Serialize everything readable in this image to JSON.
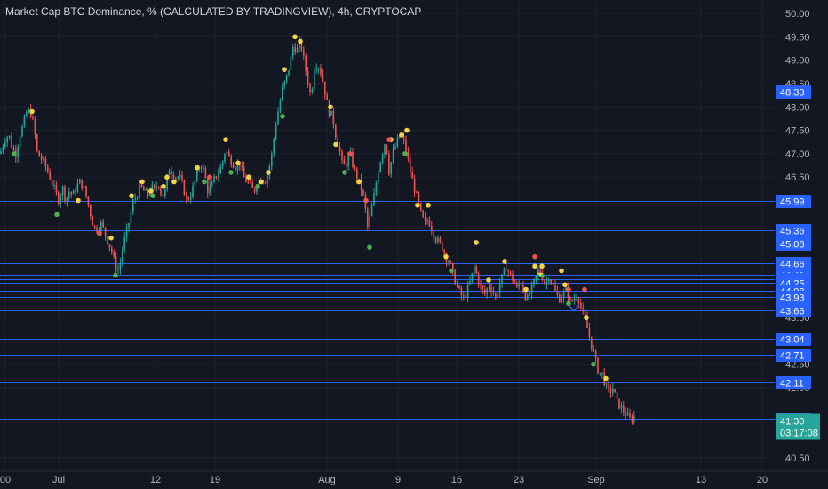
{
  "header": {
    "title": "Market Cap BTC Dominance, % (CALCULATED BY TRADINGVIEW), 4h, CRYPTOCAP"
  },
  "colors": {
    "background": "#131722",
    "grid": "#1e222d",
    "level_line": "#2962ff",
    "up_candle": "#26a69a",
    "down_candle": "#ef5350",
    "dot_yellow": "#f5d442",
    "dot_green": "#4caf50",
    "dot_red": "#ef5350",
    "current_price_bg": "#26a69a"
  },
  "chart_data": {
    "type": "candlestick",
    "y_axis_ticks": [
      "50.00",
      "49.50",
      "49.00",
      "48.50",
      "48.00",
      "47.50",
      "47.00",
      "46.50",
      "43.50",
      "42.50",
      "42.00",
      "40.50"
    ],
    "y_tick_values": [
      50.0,
      49.5,
      49.0,
      48.5,
      48.0,
      47.5,
      47.0,
      46.5,
      43.5,
      42.5,
      42.0,
      40.5
    ],
    "ylim": [
      40.26,
      50.15
    ],
    "x_axis_labels": [
      "00",
      "Jul",
      "12",
      "19",
      "Aug",
      "9",
      "16",
      "23",
      "Sep",
      "13",
      "20"
    ],
    "level_lines": [
      "48.33",
      "45.99",
      "45.36",
      "45.08",
      "44.66",
      "44.41",
      "44.31",
      "44.25",
      "44.08",
      "43.93",
      "43.66",
      "43.04",
      "42.71",
      "42.11",
      "41.33"
    ],
    "level_values": [
      48.33,
      45.99,
      45.36,
      45.08,
      44.66,
      44.41,
      44.31,
      44.25,
      44.08,
      43.93,
      43.66,
      43.04,
      42.71,
      42.11,
      41.33
    ],
    "current_price": "41.30",
    "current_value": 41.3,
    "countdown": "03:17:08",
    "close_path": [
      [
        0,
        47.0
      ],
      [
        5,
        47.3
      ],
      [
        10,
        47.4
      ],
      [
        14,
        47.1
      ],
      [
        18,
        47.0
      ],
      [
        22,
        47.4
      ],
      [
        26,
        47.6
      ],
      [
        30,
        47.9
      ],
      [
        34,
        47.9
      ],
      [
        38,
        47.6
      ],
      [
        42,
        47.0
      ],
      [
        46,
        46.9
      ],
      [
        50,
        46.8
      ],
      [
        54,
        46.6
      ],
      [
        58,
        46.4
      ],
      [
        62,
        46.2
      ],
      [
        66,
        46.0
      ],
      [
        70,
        46.3
      ],
      [
        74,
        46.0
      ],
      [
        78,
        46.2
      ],
      [
        82,
        46.1
      ],
      [
        86,
        46.3
      ],
      [
        90,
        46.4
      ],
      [
        94,
        46.3
      ],
      [
        98,
        46.0
      ],
      [
        102,
        45.7
      ],
      [
        106,
        45.4
      ],
      [
        110,
        45.4
      ],
      [
        114,
        45.5
      ],
      [
        118,
        45.3
      ],
      [
        122,
        45.1
      ],
      [
        126,
        44.9
      ],
      [
        130,
        44.6
      ],
      [
        134,
        44.5
      ],
      [
        138,
        45.0
      ],
      [
        142,
        45.3
      ],
      [
        146,
        45.6
      ],
      [
        150,
        46.0
      ],
      [
        154,
        46.1
      ],
      [
        158,
        46.3
      ],
      [
        162,
        46.2
      ],
      [
        166,
        46.1
      ],
      [
        170,
        46.3
      ],
      [
        174,
        46.2
      ],
      [
        178,
        46.4
      ],
      [
        182,
        46.1
      ],
      [
        186,
        46.2
      ],
      [
        190,
        46.7
      ],
      [
        194,
        46.6
      ],
      [
        198,
        46.5
      ],
      [
        202,
        46.5
      ],
      [
        206,
        46.3
      ],
      [
        210,
        46.0
      ],
      [
        214,
        46.1
      ],
      [
        218,
        46.3
      ],
      [
        222,
        46.6
      ],
      [
        226,
        46.8
      ],
      [
        230,
        46.6
      ],
      [
        234,
        46.2
      ],
      [
        238,
        46.3
      ],
      [
        242,
        46.5
      ],
      [
        246,
        46.6
      ],
      [
        250,
        46.8
      ],
      [
        254,
        47.1
      ],
      [
        258,
        46.9
      ],
      [
        262,
        46.8
      ],
      [
        266,
        46.7
      ],
      [
        270,
        46.8
      ],
      [
        274,
        46.5
      ],
      [
        278,
        46.4
      ],
      [
        282,
        46.3
      ],
      [
        286,
        46.2
      ],
      [
        290,
        46.4
      ],
      [
        294,
        46.5
      ],
      [
        298,
        46.4
      ],
      [
        302,
        46.6
      ],
      [
        306,
        47.0
      ],
      [
        310,
        47.6
      ],
      [
        314,
        48.0
      ],
      [
        318,
        48.4
      ],
      [
        322,
        48.6
      ],
      [
        326,
        48.9
      ],
      [
        330,
        49.3
      ],
      [
        334,
        49.2
      ],
      [
        338,
        49.4
      ],
      [
        342,
        49.0
      ],
      [
        346,
        48.6
      ],
      [
        350,
        48.2
      ],
      [
        354,
        48.9
      ],
      [
        358,
        48.9
      ],
      [
        362,
        48.7
      ],
      [
        366,
        48.3
      ],
      [
        370,
        47.9
      ],
      [
        374,
        47.8
      ],
      [
        378,
        47.4
      ],
      [
        382,
        47.1
      ],
      [
        386,
        46.7
      ],
      [
        390,
        46.8
      ],
      [
        394,
        47.0
      ],
      [
        398,
        46.7
      ],
      [
        402,
        46.5
      ],
      [
        406,
        46.3
      ],
      [
        410,
        46.0
      ],
      [
        414,
        45.4
      ],
      [
        418,
        45.8
      ],
      [
        422,
        46.2
      ],
      [
        426,
        46.7
      ],
      [
        430,
        47.0
      ],
      [
        434,
        47.3
      ],
      [
        438,
        46.6
      ],
      [
        442,
        47.0
      ],
      [
        446,
        47.2
      ],
      [
        450,
        47.4
      ],
      [
        454,
        47.3
      ],
      [
        458,
        47.0
      ],
      [
        462,
        46.6
      ],
      [
        466,
        46.3
      ],
      [
        470,
        46.0
      ],
      [
        474,
        45.7
      ],
      [
        478,
        45.5
      ],
      [
        482,
        45.6
      ],
      [
        486,
        45.4
      ],
      [
        490,
        45.2
      ],
      [
        494,
        45.1
      ],
      [
        498,
        45.0
      ],
      [
        502,
        44.8
      ],
      [
        506,
        44.7
      ],
      [
        510,
        44.4
      ],
      [
        514,
        44.2
      ],
      [
        518,
        44.0
      ],
      [
        522,
        43.9
      ],
      [
        526,
        44.1
      ],
      [
        530,
        44.3
      ],
      [
        534,
        44.6
      ],
      [
        538,
        44.3
      ],
      [
        542,
        44.1
      ],
      [
        546,
        44.0
      ],
      [
        550,
        44.2
      ],
      [
        554,
        44.1
      ],
      [
        558,
        43.9
      ],
      [
        562,
        44.2
      ],
      [
        566,
        44.4
      ],
      [
        570,
        44.6
      ],
      [
        574,
        44.4
      ],
      [
        578,
        44.3
      ],
      [
        582,
        44.1
      ],
      [
        586,
        44.3
      ],
      [
        590,
        44.0
      ],
      [
        594,
        43.9
      ],
      [
        598,
        44.1
      ],
      [
        602,
        44.3
      ],
      [
        606,
        44.5
      ],
      [
        610,
        44.4
      ],
      [
        614,
        44.2
      ],
      [
        618,
        44.4
      ],
      [
        622,
        44.2
      ],
      [
        626,
        44.0
      ],
      [
        630,
        43.9
      ],
      [
        634,
        44.0
      ],
      [
        638,
        44.1
      ],
      [
        642,
        43.8
      ],
      [
        646,
        43.9
      ],
      [
        650,
        44.0
      ],
      [
        654,
        43.7
      ],
      [
        658,
        43.5
      ],
      [
        662,
        43.2
      ],
      [
        666,
        42.9
      ],
      [
        670,
        42.6
      ],
      [
        674,
        42.3
      ],
      [
        678,
        42.3
      ],
      [
        682,
        42.0
      ],
      [
        686,
        41.9
      ],
      [
        690,
        42.0
      ],
      [
        694,
        41.7
      ],
      [
        698,
        41.6
      ],
      [
        702,
        41.5
      ],
      [
        706,
        41.4
      ],
      [
        710,
        41.3
      ],
      [
        714,
        41.4
      ],
      [
        716,
        41.3
      ]
    ],
    "dots_yellow": [
      [
        36,
        47.9
      ],
      [
        88,
        46.0
      ],
      [
        125,
        45.2
      ],
      [
        148,
        46.1
      ],
      [
        160,
        46.4
      ],
      [
        170,
        46.2
      ],
      [
        184,
        46.3
      ],
      [
        188,
        46.5
      ],
      [
        196,
        46.4
      ],
      [
        222,
        46.7
      ],
      [
        254,
        47.3
      ],
      [
        268,
        46.8
      ],
      [
        280,
        46.5
      ],
      [
        294,
        46.4
      ],
      [
        302,
        46.6
      ],
      [
        320,
        48.8
      ],
      [
        332,
        49.5
      ],
      [
        338,
        49.4
      ],
      [
        372,
        48.0
      ],
      [
        378,
        47.2
      ],
      [
        404,
        46.4
      ],
      [
        440,
        47.3
      ],
      [
        452,
        47.4
      ],
      [
        458,
        47.5
      ],
      [
        470,
        45.9
      ],
      [
        482,
        45.9
      ],
      [
        502,
        44.8
      ],
      [
        536,
        45.1
      ],
      [
        550,
        44.3
      ],
      [
        568,
        44.7
      ],
      [
        592,
        44.1
      ],
      [
        602,
        44.6
      ],
      [
        610,
        44.6
      ],
      [
        632,
        44.5
      ],
      [
        636,
        44.2
      ],
      [
        660,
        43.5
      ],
      [
        682,
        42.2
      ]
    ],
    "dots_green": [
      [
        16,
        47.0
      ],
      [
        64,
        45.7
      ],
      [
        130,
        44.4
      ],
      [
        172,
        46.1
      ],
      [
        230,
        46.4
      ],
      [
        260,
        46.6
      ],
      [
        290,
        46.3
      ],
      [
        318,
        47.8
      ],
      [
        388,
        46.6
      ],
      [
        416,
        45.0
      ],
      [
        456,
        47.0
      ],
      [
        508,
        44.5
      ],
      [
        610,
        44.4
      ],
      [
        640,
        43.8
      ],
      [
        668,
        42.5
      ]
    ],
    "dots_red": [
      [
        112,
        45.3
      ],
      [
        236,
        46.5
      ],
      [
        394,
        47.0
      ],
      [
        412,
        46.0
      ],
      [
        438,
        47.3
      ],
      [
        602,
        44.8
      ],
      [
        640,
        44.1
      ],
      [
        658,
        44.1
      ]
    ]
  }
}
